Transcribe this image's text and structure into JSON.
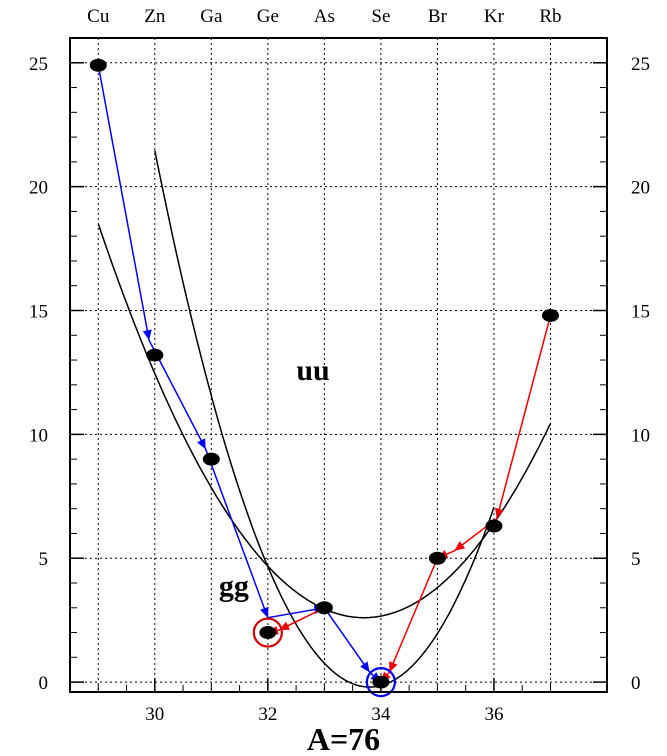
{
  "chart_data": {
    "type": "scatter",
    "title": "",
    "xlabel": "A=76",
    "ylabel": "",
    "xlim": [
      28.5,
      38.0
    ],
    "ylim": [
      -0.4,
      26.0
    ],
    "x_ticks": [
      30,
      32,
      34,
      36
    ],
    "y_ticks": [
      0,
      5,
      10,
      15,
      20,
      25
    ],
    "grid": true,
    "grid_style": "dotted",
    "top_axis_labels": [
      {
        "x": 29,
        "label": "Cu"
      },
      {
        "x": 30,
        "label": "Zn"
      },
      {
        "x": 31,
        "label": "Ga"
      },
      {
        "x": 32,
        "label": "Ge"
      },
      {
        "x": 33,
        "label": "As"
      },
      {
        "x": 34,
        "label": "Se"
      },
      {
        "x": 35,
        "label": "Br"
      },
      {
        "x": 36,
        "label": "Kr"
      },
      {
        "x": 37,
        "label": "Rb"
      }
    ],
    "points": [
      {
        "x": 29,
        "y": 24.9
      },
      {
        "x": 30,
        "y": 13.2
      },
      {
        "x": 31,
        "y": 9.0
      },
      {
        "x": 32,
        "y": 2.0
      },
      {
        "x": 33,
        "y": 3.0
      },
      {
        "x": 34,
        "y": 0.0
      },
      {
        "x": 35,
        "y": 5.0
      },
      {
        "x": 36,
        "y": 6.3
      },
      {
        "x": 37,
        "y": 14.8
      }
    ],
    "parabolas": [
      {
        "label": "uu",
        "vertex_x": 33.7,
        "vertex_y": 2.6,
        "a": 0.72,
        "x_range": [
          29.0,
          37.0
        ],
        "color": "#000000"
      },
      {
        "label": "gg",
        "vertex_x": 33.8,
        "vertex_y": -0.2,
        "a": 1.5,
        "x_range": [
          30.0,
          36.0
        ],
        "color": "#000000"
      }
    ],
    "series": [
      {
        "color": "#0000ee",
        "points": [
          [
            29,
            24.9
          ],
          [
            29.9,
            13.8
          ],
          [
            30.9,
            9.4
          ],
          [
            32,
            2.6
          ],
          [
            33,
            3.0
          ],
          [
            33.8,
            0.4
          ],
          [
            34,
            0.0
          ]
        ]
      },
      {
        "color": "#ee0000",
        "points": [
          [
            37,
            14.8
          ],
          [
            36.05,
            6.6
          ],
          [
            35.3,
            5.3
          ],
          [
            35,
            5.0
          ],
          [
            34.15,
            0.4
          ],
          [
            34,
            0.0
          ]
        ]
      },
      {
        "color": "#ee0000",
        "points": [
          [
            33,
            3.0
          ],
          [
            32.2,
            2.1
          ],
          [
            32,
            2.0
          ]
        ]
      }
    ],
    "circled_points": [
      {
        "x": 32,
        "y": 2.0,
        "color": "#cc0000"
      },
      {
        "x": 34,
        "y": 0.0,
        "color": "#0000ee"
      }
    ],
    "annotations": [
      {
        "text": "uu",
        "x": 32.8,
        "y": 12.2
      },
      {
        "text": "gg",
        "x": 31.4,
        "y": 3.5
      }
    ]
  }
}
